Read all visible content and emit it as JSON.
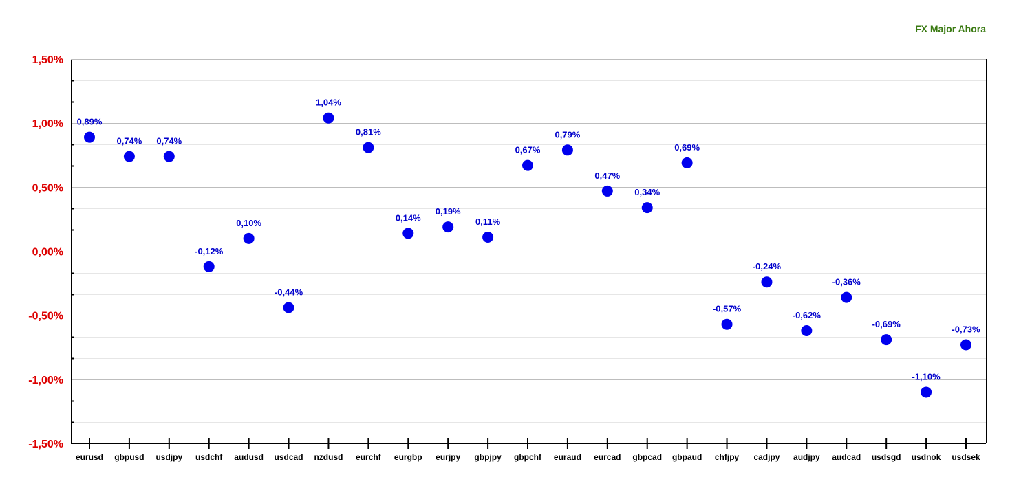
{
  "chart_data": {
    "type": "scatter",
    "title": "FX Major Ahora",
    "xlabel": "",
    "ylabel": "",
    "ylim": [
      -1.5,
      1.5
    ],
    "yticks": [
      "1,50%",
      "1,00%",
      "0,50%",
      "0,00%",
      "-0,50%",
      "-1,00%",
      "-1,50%"
    ],
    "ytick_values": [
      1.5,
      1.0,
      0.5,
      0.0,
      -0.5,
      -1.0,
      -1.5
    ],
    "grid": true,
    "categories": [
      "eurusd",
      "gbpusd",
      "usdjpy",
      "usdchf",
      "audusd",
      "usdcad",
      "nzdusd",
      "eurchf",
      "eurgbp",
      "eurjpy",
      "gbpjpy",
      "gbpchf",
      "euraud",
      "eurcad",
      "gbpcad",
      "gbpaud",
      "chfjpy",
      "cadjpy",
      "audjpy",
      "audcad",
      "usdsgd",
      "usdnok",
      "usdsek"
    ],
    "values": [
      0.89,
      0.74,
      0.74,
      -0.12,
      0.1,
      -0.44,
      1.04,
      0.81,
      0.14,
      0.19,
      0.11,
      0.67,
      0.79,
      0.47,
      0.34,
      0.69,
      -0.57,
      -0.24,
      -0.62,
      -0.36,
      -0.69,
      -1.1,
      -0.73
    ],
    "labels": [
      "0,89%",
      "0,74%",
      "0,74%",
      "-0,12%",
      "0,10%",
      "-0,44%",
      "1,04%",
      "0,81%",
      "0,14%",
      "0,19%",
      "0,11%",
      "0,67%",
      "0,79%",
      "0,47%",
      "0,34%",
      "0,69%",
      "-0,57%",
      "-0,24%",
      "-0,62%",
      "-0,36%",
      "-0,69%",
      "-1,10%",
      "-0,73%"
    ],
    "colors": {
      "marker": "#0000ee",
      "label": "#0000cc",
      "ytick": "#dd0000",
      "title": "#3a7a12",
      "grid": "#cccccc",
      "axis": "#000000"
    }
  }
}
